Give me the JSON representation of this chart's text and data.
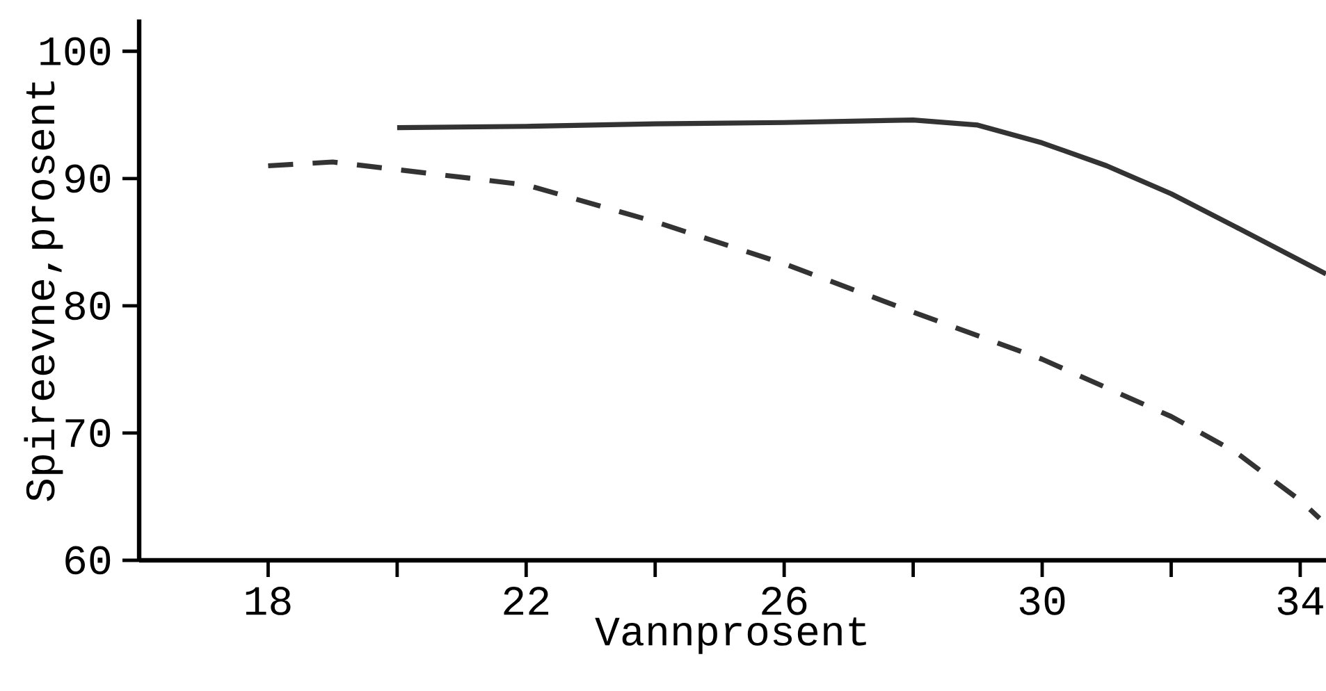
{
  "chart_data": {
    "type": "line",
    "xlabel": "Vannprosent",
    "ylabel": "Spireevne,prosent",
    "xlim": [
      16,
      34.4
    ],
    "ylim": [
      60,
      102.5
    ],
    "xticks": [
      18,
      {
        "value": 20,
        "label": null
      },
      22,
      {
        "value": 24,
        "label": null
      },
      26,
      {
        "value": 28,
        "label": null
      },
      30,
      {
        "value": 32,
        "label": null
      },
      34
    ],
    "yticks": [
      60,
      70,
      80,
      90,
      100
    ],
    "marker": "none",
    "series": [
      {
        "color": "#333333",
        "line_style": "solid",
        "x": [
          20,
          22,
          24,
          26,
          28,
          29,
          30,
          31,
          32,
          33,
          34.4
        ],
        "values": [
          94.0,
          94.1,
          94.3,
          94.4,
          94.6,
          94.2,
          92.8,
          91.0,
          88.8,
          86.2,
          82.5
        ]
      },
      {
        "color": "#333333",
        "line_style": "dashed",
        "x": [
          18,
          19,
          20,
          22,
          24,
          26,
          28,
          30,
          32,
          33,
          34,
          34.3
        ],
        "values": [
          91.0,
          91.3,
          90.7,
          89.5,
          86.6,
          83.3,
          79.5,
          75.8,
          71.3,
          68.5,
          64.7,
          63.3
        ]
      }
    ]
  }
}
